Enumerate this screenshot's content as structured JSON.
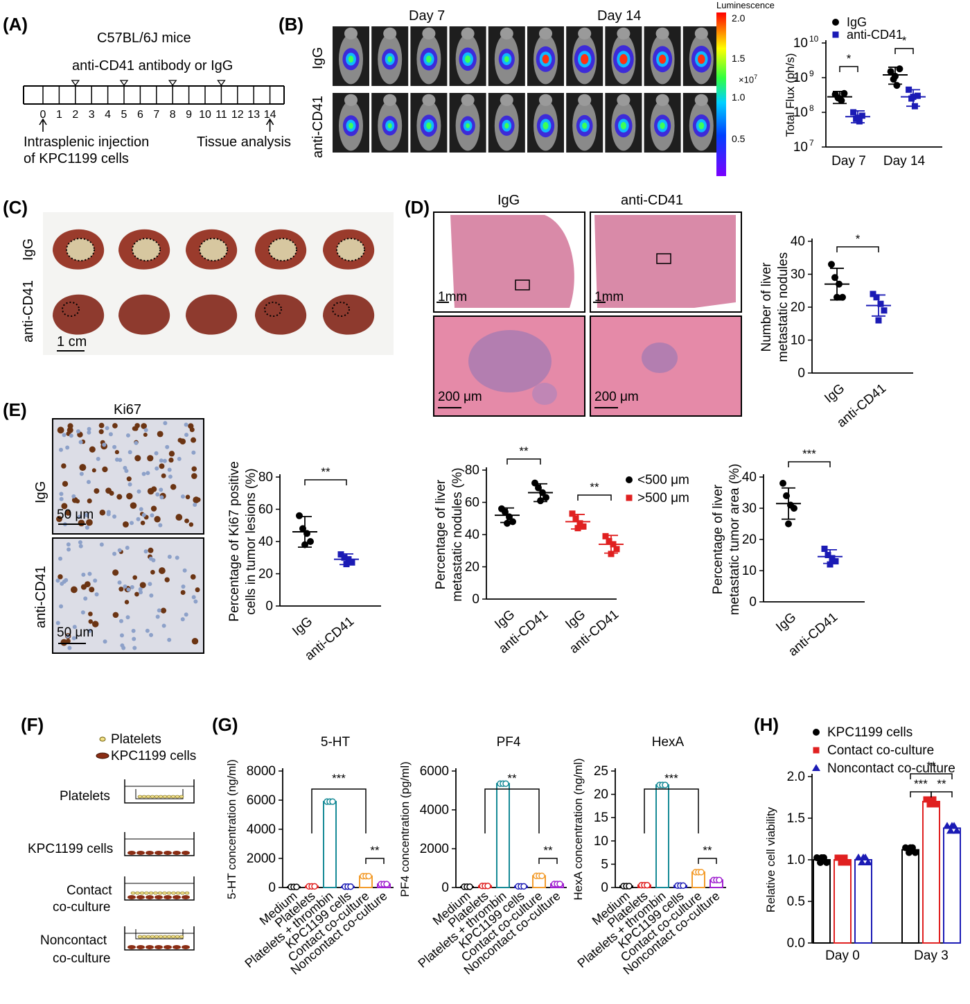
{
  "panels": {
    "A": {
      "label": "(A)",
      "title": "C57BL/6J mice",
      "treatment": "anti-CD41 antibody or IgG",
      "days": [
        "0",
        "1",
        "2",
        "3",
        "4",
        "5",
        "6",
        "7",
        "8",
        "9",
        "10",
        "11",
        "12",
        "13",
        "14"
      ],
      "injection_days": [
        2,
        5,
        8,
        11
      ],
      "start_note_1": "Intrasplenic injection",
      "start_note_2": "of KPC1199 cells",
      "end_note": "Tissue analysis"
    },
    "B": {
      "label": "(B)",
      "day7": "Day 7",
      "day14": "Day 14",
      "row_igg": "IgG",
      "row_anti": "anti-CD41",
      "colorbar_title": "Luminescence",
      "colorbar_ticks": [
        "2.0",
        "1.5",
        "1.0",
        "0.5"
      ],
      "colorbar_unit": "×10",
      "colorbar_unit_exp": "7"
    },
    "C": {
      "label": "(C)",
      "row_igg": "IgG",
      "row_anti": "anti-CD41",
      "scale": "1 cm"
    },
    "D": {
      "label": "(D)",
      "col_igg": "IgG",
      "col_anti": "anti-CD41",
      "scale_top": "1mm",
      "scale_bottom": "200 μm"
    },
    "E": {
      "label": "(E)",
      "stain": "Ki67",
      "row_igg": "IgG",
      "row_anti": "anti-CD41",
      "scale": "50 μm"
    },
    "F": {
      "label": "(F)",
      "legend_platelets": "Platelets",
      "legend_cells": "KPC1199 cells",
      "wells": [
        "Platelets",
        "KPC1199 cells",
        "Contact",
        "co-culture",
        "Noncontact",
        "co-culture"
      ]
    },
    "G": {
      "label": "(G)"
    },
    "H": {
      "label": "(H)"
    }
  },
  "chart_data": [
    {
      "id": "B-flux",
      "type": "scatter",
      "categories": [
        "Day 7",
        "Day 14"
      ],
      "ylabel": "Total Flux (ph/s)",
      "yscale": "log",
      "ylim": [
        10000000,
        10000000000
      ],
      "yticks": [
        "10",
        "10",
        "10",
        "10"
      ],
      "ytick_exps": [
        "7",
        "8",
        "9",
        "10"
      ],
      "series": [
        {
          "name": "IgG",
          "color": "#000000",
          "mean": [
            280000000,
            1200000000
          ],
          "sd_low": [
            180000000,
            650000000
          ],
          "sd_high": [
            400000000,
            2000000000
          ],
          "points": [
            [
              330000000,
              260000000,
              220000000,
              350000000,
              250000000
            ],
            [
              1500000000,
              900000000,
              600000000,
              1800000000,
              1100000000
            ]
          ]
        },
        {
          "name": "anti-CD41",
          "color": "#1b1bb5",
          "mean": [
            75000000,
            280000000
          ],
          "sd_low": [
            50000000,
            150000000
          ],
          "sd_high": [
            110000000,
            450000000
          ],
          "points": [
            [
              100000000,
              65000000,
              55000000,
              80000000,
              70000000
            ],
            [
              450000000,
              250000000,
              150000000,
              300000000,
              280000000
            ]
          ]
        }
      ],
      "significance": [
        "*",
        "*"
      ]
    },
    {
      "id": "D-nodules",
      "type": "scatter",
      "categories": [
        "IgG",
        "anti-CD41"
      ],
      "ylabel": "Number of liver metastatic nodules",
      "ylim": [
        0,
        40
      ],
      "yticks": [
        "0",
        "10",
        "20",
        "30",
        "40"
      ],
      "colors": [
        "#000000",
        "#1b1bb5"
      ],
      "mean": [
        27,
        20.5
      ],
      "sd": [
        4.8,
        3.2
      ],
      "points": [
        [
          33,
          29,
          27,
          23,
          23
        ],
        [
          24,
          23,
          21,
          19,
          16
        ]
      ],
      "significance": "*"
    },
    {
      "id": "E-ki67",
      "type": "scatter",
      "categories": [
        "IgG",
        "anti-CD41"
      ],
      "ylabel": "Percentage of Ki67 positive cells in tumor lesions (%)",
      "ylim": [
        0,
        80
      ],
      "yticks": [
        "0",
        "20",
        "40",
        "60",
        "80"
      ],
      "colors": [
        "#000000",
        "#1b1bb5"
      ],
      "mean": [
        46,
        29
      ],
      "sd": [
        9.5,
        3.3
      ],
      "points": [
        [
          56,
          48,
          45,
          40,
          38
        ],
        [
          32,
          30,
          29,
          27,
          26
        ]
      ],
      "significance": "**"
    },
    {
      "id": "D-size",
      "type": "scatter",
      "categories": [
        "IgG",
        "anti-CD41",
        "IgG",
        "anti-CD41"
      ],
      "ylabel": "Percentage of liver metastatic nodules (%)",
      "ylim": [
        0,
        80
      ],
      "yticks": [
        "0",
        "20",
        "40",
        "60",
        "80"
      ],
      "legend": [
        {
          "name": "<500 μm",
          "color": "#000000"
        },
        {
          "name": ">500 μm",
          "color": "#e02020"
        }
      ],
      "groups": [
        {
          "color": "#000000",
          "mean": 52,
          "sd": 4.5,
          "points": [
            56,
            54,
            51,
            48,
            47
          ]
        },
        {
          "color": "#000000",
          "mean": 66,
          "sd": 5.5,
          "points": [
            72,
            69,
            66,
            63,
            61
          ]
        },
        {
          "color": "#e02020",
          "mean": 48,
          "sd": 4.5,
          "points": [
            53,
            50,
            47,
            45,
            44
          ]
        },
        {
          "color": "#e02020",
          "mean": 34,
          "sd": 5.5,
          "points": [
            39,
            36,
            34,
            31,
            28
          ]
        }
      ],
      "significance": [
        "**",
        "**"
      ]
    },
    {
      "id": "D-area",
      "type": "scatter",
      "categories": [
        "IgG",
        "anti-CD41"
      ],
      "ylabel": "Percentage of liver metastatic tumor area (%)",
      "ylim": [
        0,
        40
      ],
      "yticks": [
        "0",
        "10",
        "20",
        "30",
        "40"
      ],
      "colors": [
        "#000000",
        "#1b1bb5"
      ],
      "mean": [
        31.5,
        14.5
      ],
      "sd": [
        5,
        2.2
      ],
      "points": [
        [
          38,
          34,
          31,
          30,
          25
        ],
        [
          17,
          15,
          14,
          13,
          12
        ]
      ],
      "significance": "***"
    },
    {
      "id": "G-5HT",
      "type": "bar",
      "title": "5-HT",
      "categories": [
        "Medium",
        "Platelets",
        "Platelets + thrombin",
        "KPC1199 cells",
        "Contact co-culture",
        "Noncontact co-culture"
      ],
      "colors": [
        "#000000",
        "#e02020",
        "#168a96",
        "#1b1bb5",
        "#f39c2c",
        "#a020d0"
      ],
      "values": [
        40,
        80,
        5900,
        60,
        780,
        230
      ],
      "ylabel": "5-HT concentration (ng/ml)",
      "ylim": [
        0,
        8000
      ],
      "yticks": [
        "0",
        "2000",
        "4000",
        "6000",
        "8000"
      ],
      "significance": [
        "***",
        "**"
      ]
    },
    {
      "id": "G-PF4",
      "type": "bar",
      "title": "PF4",
      "categories": [
        "Medium",
        "Platelets",
        "Platelets + thrombin",
        "KPC1199 cells",
        "Contact co-culture",
        "Noncontact co-culture"
      ],
      "colors": [
        "#000000",
        "#e02020",
        "#168a96",
        "#1b1bb5",
        "#f39c2c",
        "#a020d0"
      ],
      "values": [
        40,
        80,
        5350,
        60,
        600,
        180
      ],
      "ylabel": "PF4 concentration (pg/ml)",
      "ylim": [
        0,
        6000
      ],
      "yticks": [
        "0",
        "2000",
        "4000",
        "6000"
      ],
      "significance": [
        "**",
        "**"
      ]
    },
    {
      "id": "G-HexA",
      "type": "bar",
      "title": "HexA",
      "categories": [
        "Medium",
        "Platelets",
        "Platelets + thrombin",
        "KPC1199 cells",
        "Contact co-culture",
        "Noncontact co-culture"
      ],
      "colors": [
        "#000000",
        "#e02020",
        "#168a96",
        "#1b1bb5",
        "#f39c2c",
        "#a020d0"
      ],
      "values": [
        0.3,
        0.5,
        22,
        0.4,
        3.3,
        1.6
      ],
      "ylabel": "HexA concentration (ng/ml)",
      "ylim": [
        0,
        25
      ],
      "yticks": [
        "0",
        "5",
        "10",
        "15",
        "20",
        "25"
      ],
      "significance": [
        "***",
        "**"
      ]
    },
    {
      "id": "H-viability",
      "type": "bar",
      "categories": [
        "Day 0",
        "Day 3"
      ],
      "series": [
        {
          "name": "KPC1199 cells",
          "color": "#000000",
          "values": [
            1.0,
            1.12
          ]
        },
        {
          "name": "Contact co-culture",
          "color": "#e02020",
          "values": [
            1.0,
            1.7
          ]
        },
        {
          "name": "Noncontact co-culture",
          "color": "#1b1bb5",
          "values": [
            1.0,
            1.38
          ]
        }
      ],
      "ylabel": "Relative cell viability",
      "ylim": [
        0,
        2.0
      ],
      "yticks": [
        "0.0",
        "0.5",
        "1.0",
        "1.5",
        "2.0"
      ],
      "significance": [
        "**",
        "***",
        "**"
      ]
    }
  ]
}
